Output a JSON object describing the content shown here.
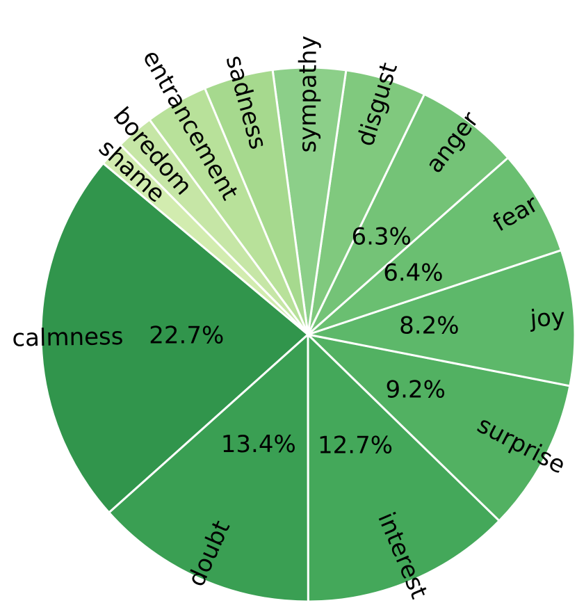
{
  "chart_data": {
    "type": "pie",
    "categories": [
      "calmness",
      "doubt",
      "interest",
      "surprise",
      "joy",
      "fear",
      "anger",
      "disgust",
      "sympathy",
      "sadness",
      "entrancement",
      "boredom",
      "shame"
    ],
    "values": [
      22.7,
      13.4,
      12.7,
      9.2,
      8.2,
      6.4,
      6.3,
      4.9,
      4.4,
      4.2,
      3.8,
      2.3,
      1.5
    ],
    "value_labels": [
      "22.7%",
      "13.4%",
      "12.7%",
      "9.2%",
      "8.2%",
      "6.4%",
      "6.3%",
      null,
      null,
      null,
      null,
      null,
      null
    ],
    "colors": [
      "#31954c",
      "#3a9f53",
      "#44a85a",
      "#52b162",
      "#5db86a",
      "#6abf71",
      "#74c377",
      "#80c97e",
      "#8ccf89",
      "#a6d98e",
      "#b8e19a",
      "#c6e6a6",
      "#d2ecaf"
    ],
    "counterclockwise": true
  }
}
